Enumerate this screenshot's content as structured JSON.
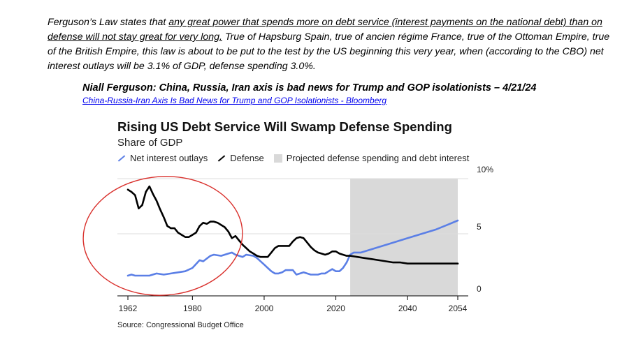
{
  "quote": {
    "lead": "Ferguson’s Law states that ",
    "underlined": "any great power that spends more on debt service (interest payments on the national debt) than on defense will not stay great for very long.",
    "rest": " True of Hapsburg Spain, true of ancien régime France, true of the Ottoman Empire, true of the British Empire, this law is about to be put to the test by the US beginning this very year, when (according to the CBO) net interest outlays will be 3.1% of GDP, defense spending 3.0%."
  },
  "attribution": "Niall Ferguson: China, Russia, Iran axis is bad news for Trump and GOP isolationists – 4/21/24",
  "link_text": "China-Russia-Iran Axis Is Bad News for Trump and GOP Isolationists - Bloomberg",
  "source": "Source: Congressional Budget Office",
  "colors": {
    "interest": "#5b7fe6",
    "defense": "#000000",
    "projection": "#d9d9d9",
    "annotation": "#d9302c"
  },
  "chart_data": {
    "type": "line",
    "title": "Rising US Debt Service Will Swamp Defense Spending",
    "subtitle": "Share of GDP",
    "legend": [
      "Net interest outlays",
      "Defense",
      "Projected defense spending and debt interest"
    ],
    "legend_placement": "top-left",
    "xlim": [
      1962,
      2054
    ],
    "ylim": [
      0,
      10
    ],
    "x_ticks": [
      "1962",
      "1980",
      "2000",
      "2020",
      "2040",
      "2054"
    ],
    "x_tick_values": [
      1962,
      1980,
      2000,
      2020,
      2040,
      2054
    ],
    "y_ticks": [
      "0",
      "5",
      "10%"
    ],
    "y_tick_values": [
      0,
      5,
      10
    ],
    "grid": "horizontal",
    "projection_range": [
      2024,
      2054
    ],
    "annotation": "red ellipse circling 1962–1995",
    "series": [
      {
        "name": "Net interest outlays",
        "color": "#5b7fe6",
        "points": [
          [
            1962,
            1.2
          ],
          [
            1963,
            1.3
          ],
          [
            1964,
            1.2
          ],
          [
            1966,
            1.2
          ],
          [
            1968,
            1.2
          ],
          [
            1970,
            1.4
          ],
          [
            1972,
            1.3
          ],
          [
            1974,
            1.4
          ],
          [
            1976,
            1.5
          ],
          [
            1978,
            1.6
          ],
          [
            1980,
            1.9
          ],
          [
            1982,
            2.6
          ],
          [
            1983,
            2.5
          ],
          [
            1985,
            3.0
          ],
          [
            1986,
            3.1
          ],
          [
            1988,
            3.0
          ],
          [
            1990,
            3.2
          ],
          [
            1991,
            3.3
          ],
          [
            1992,
            3.1
          ],
          [
            1994,
            2.9
          ],
          [
            1995,
            3.1
          ],
          [
            1997,
            3.0
          ],
          [
            1998,
            2.8
          ],
          [
            2000,
            2.2
          ],
          [
            2001,
            1.9
          ],
          [
            2002,
            1.6
          ],
          [
            2003,
            1.4
          ],
          [
            2004,
            1.4
          ],
          [
            2005,
            1.5
          ],
          [
            2006,
            1.7
          ],
          [
            2007,
            1.7
          ],
          [
            2008,
            1.7
          ],
          [
            2009,
            1.3
          ],
          [
            2010,
            1.4
          ],
          [
            2011,
            1.5
          ],
          [
            2012,
            1.4
          ],
          [
            2013,
            1.3
          ],
          [
            2014,
            1.3
          ],
          [
            2015,
            1.3
          ],
          [
            2016,
            1.4
          ],
          [
            2017,
            1.4
          ],
          [
            2018,
            1.6
          ],
          [
            2019,
            1.8
          ],
          [
            2020,
            1.6
          ],
          [
            2021,
            1.6
          ],
          [
            2022,
            1.9
          ],
          [
            2023,
            2.4
          ],
          [
            2024,
            3.1
          ],
          [
            2025,
            3.3
          ],
          [
            2027,
            3.3
          ],
          [
            2030,
            3.6
          ],
          [
            2035,
            4.1
          ],
          [
            2040,
            4.6
          ],
          [
            2044,
            5.0
          ],
          [
            2048,
            5.4
          ],
          [
            2051,
            5.8
          ],
          [
            2054,
            6.2
          ]
        ]
      },
      {
        "name": "Defense",
        "color": "#000000",
        "points": [
          [
            1962,
            9.0
          ],
          [
            1963,
            8.8
          ],
          [
            1964,
            8.5
          ],
          [
            1965,
            7.3
          ],
          [
            1966,
            7.6
          ],
          [
            1967,
            8.8
          ],
          [
            1968,
            9.3
          ],
          [
            1969,
            8.6
          ],
          [
            1970,
            8.0
          ],
          [
            1971,
            7.2
          ],
          [
            1972,
            6.5
          ],
          [
            1973,
            5.7
          ],
          [
            1974,
            5.5
          ],
          [
            1975,
            5.5
          ],
          [
            1976,
            5.1
          ],
          [
            1977,
            4.9
          ],
          [
            1978,
            4.7
          ],
          [
            1979,
            4.7
          ],
          [
            1980,
            4.9
          ],
          [
            1981,
            5.1
          ],
          [
            1982,
            5.7
          ],
          [
            1983,
            6.0
          ],
          [
            1984,
            5.9
          ],
          [
            1985,
            6.1
          ],
          [
            1986,
            6.1
          ],
          [
            1987,
            6.0
          ],
          [
            1988,
            5.8
          ],
          [
            1989,
            5.6
          ],
          [
            1990,
            5.2
          ],
          [
            1991,
            4.6
          ],
          [
            1992,
            4.8
          ],
          [
            1993,
            4.4
          ],
          [
            1994,
            4.0
          ],
          [
            1995,
            3.7
          ],
          [
            1996,
            3.4
          ],
          [
            1997,
            3.2
          ],
          [
            1998,
            3.0
          ],
          [
            1999,
            2.9
          ],
          [
            2000,
            2.9
          ],
          [
            2001,
            2.9
          ],
          [
            2002,
            3.3
          ],
          [
            2003,
            3.7
          ],
          [
            2004,
            3.9
          ],
          [
            2005,
            3.9
          ],
          [
            2006,
            3.9
          ],
          [
            2007,
            3.9
          ],
          [
            2008,
            4.3
          ],
          [
            2009,
            4.6
          ],
          [
            2010,
            4.7
          ],
          [
            2011,
            4.6
          ],
          [
            2012,
            4.2
          ],
          [
            2013,
            3.8
          ],
          [
            2014,
            3.5
          ],
          [
            2015,
            3.3
          ],
          [
            2016,
            3.2
          ],
          [
            2017,
            3.1
          ],
          [
            2018,
            3.2
          ],
          [
            2019,
            3.4
          ],
          [
            2020,
            3.4
          ],
          [
            2021,
            3.2
          ],
          [
            2022,
            3.1
          ],
          [
            2023,
            3.0
          ],
          [
            2024,
            3.0
          ],
          [
            2026,
            2.9
          ],
          [
            2028,
            2.8
          ],
          [
            2030,
            2.7
          ],
          [
            2032,
            2.6
          ],
          [
            2034,
            2.5
          ],
          [
            2036,
            2.4
          ],
          [
            2038,
            2.4
          ],
          [
            2040,
            2.3
          ],
          [
            2045,
            2.3
          ],
          [
            2050,
            2.3
          ],
          [
            2054,
            2.3
          ]
        ]
      }
    ]
  }
}
